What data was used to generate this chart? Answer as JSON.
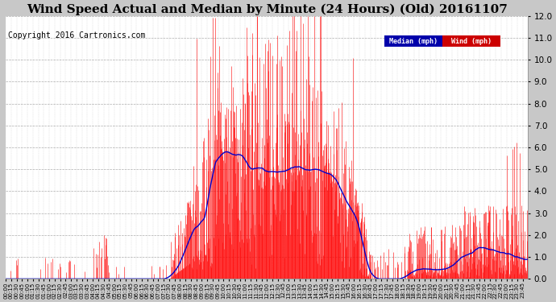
{
  "title": "Wind Speed Actual and Median by Minute (24 Hours) (Old) 20161107",
  "copyright": "Copyright 2016 Cartronics.com",
  "ylim": [
    0.0,
    12.0
  ],
  "yticks": [
    0.0,
    1.0,
    2.0,
    3.0,
    4.0,
    5.0,
    6.0,
    7.0,
    8.0,
    9.0,
    10.0,
    11.0,
    12.0
  ],
  "bg_color": "#c8c8c8",
  "plot_bg": "#ffffff",
  "wind_color": "#ff0000",
  "median_color": "#0000cc",
  "title_fontsize": 11,
  "copyright_fontsize": 7,
  "legend_median_label": "Median (mph)",
  "legend_wind_label": "Wind (mph)",
  "legend_median_bg": "#0000aa",
  "legend_wind_bg": "#cc0000"
}
